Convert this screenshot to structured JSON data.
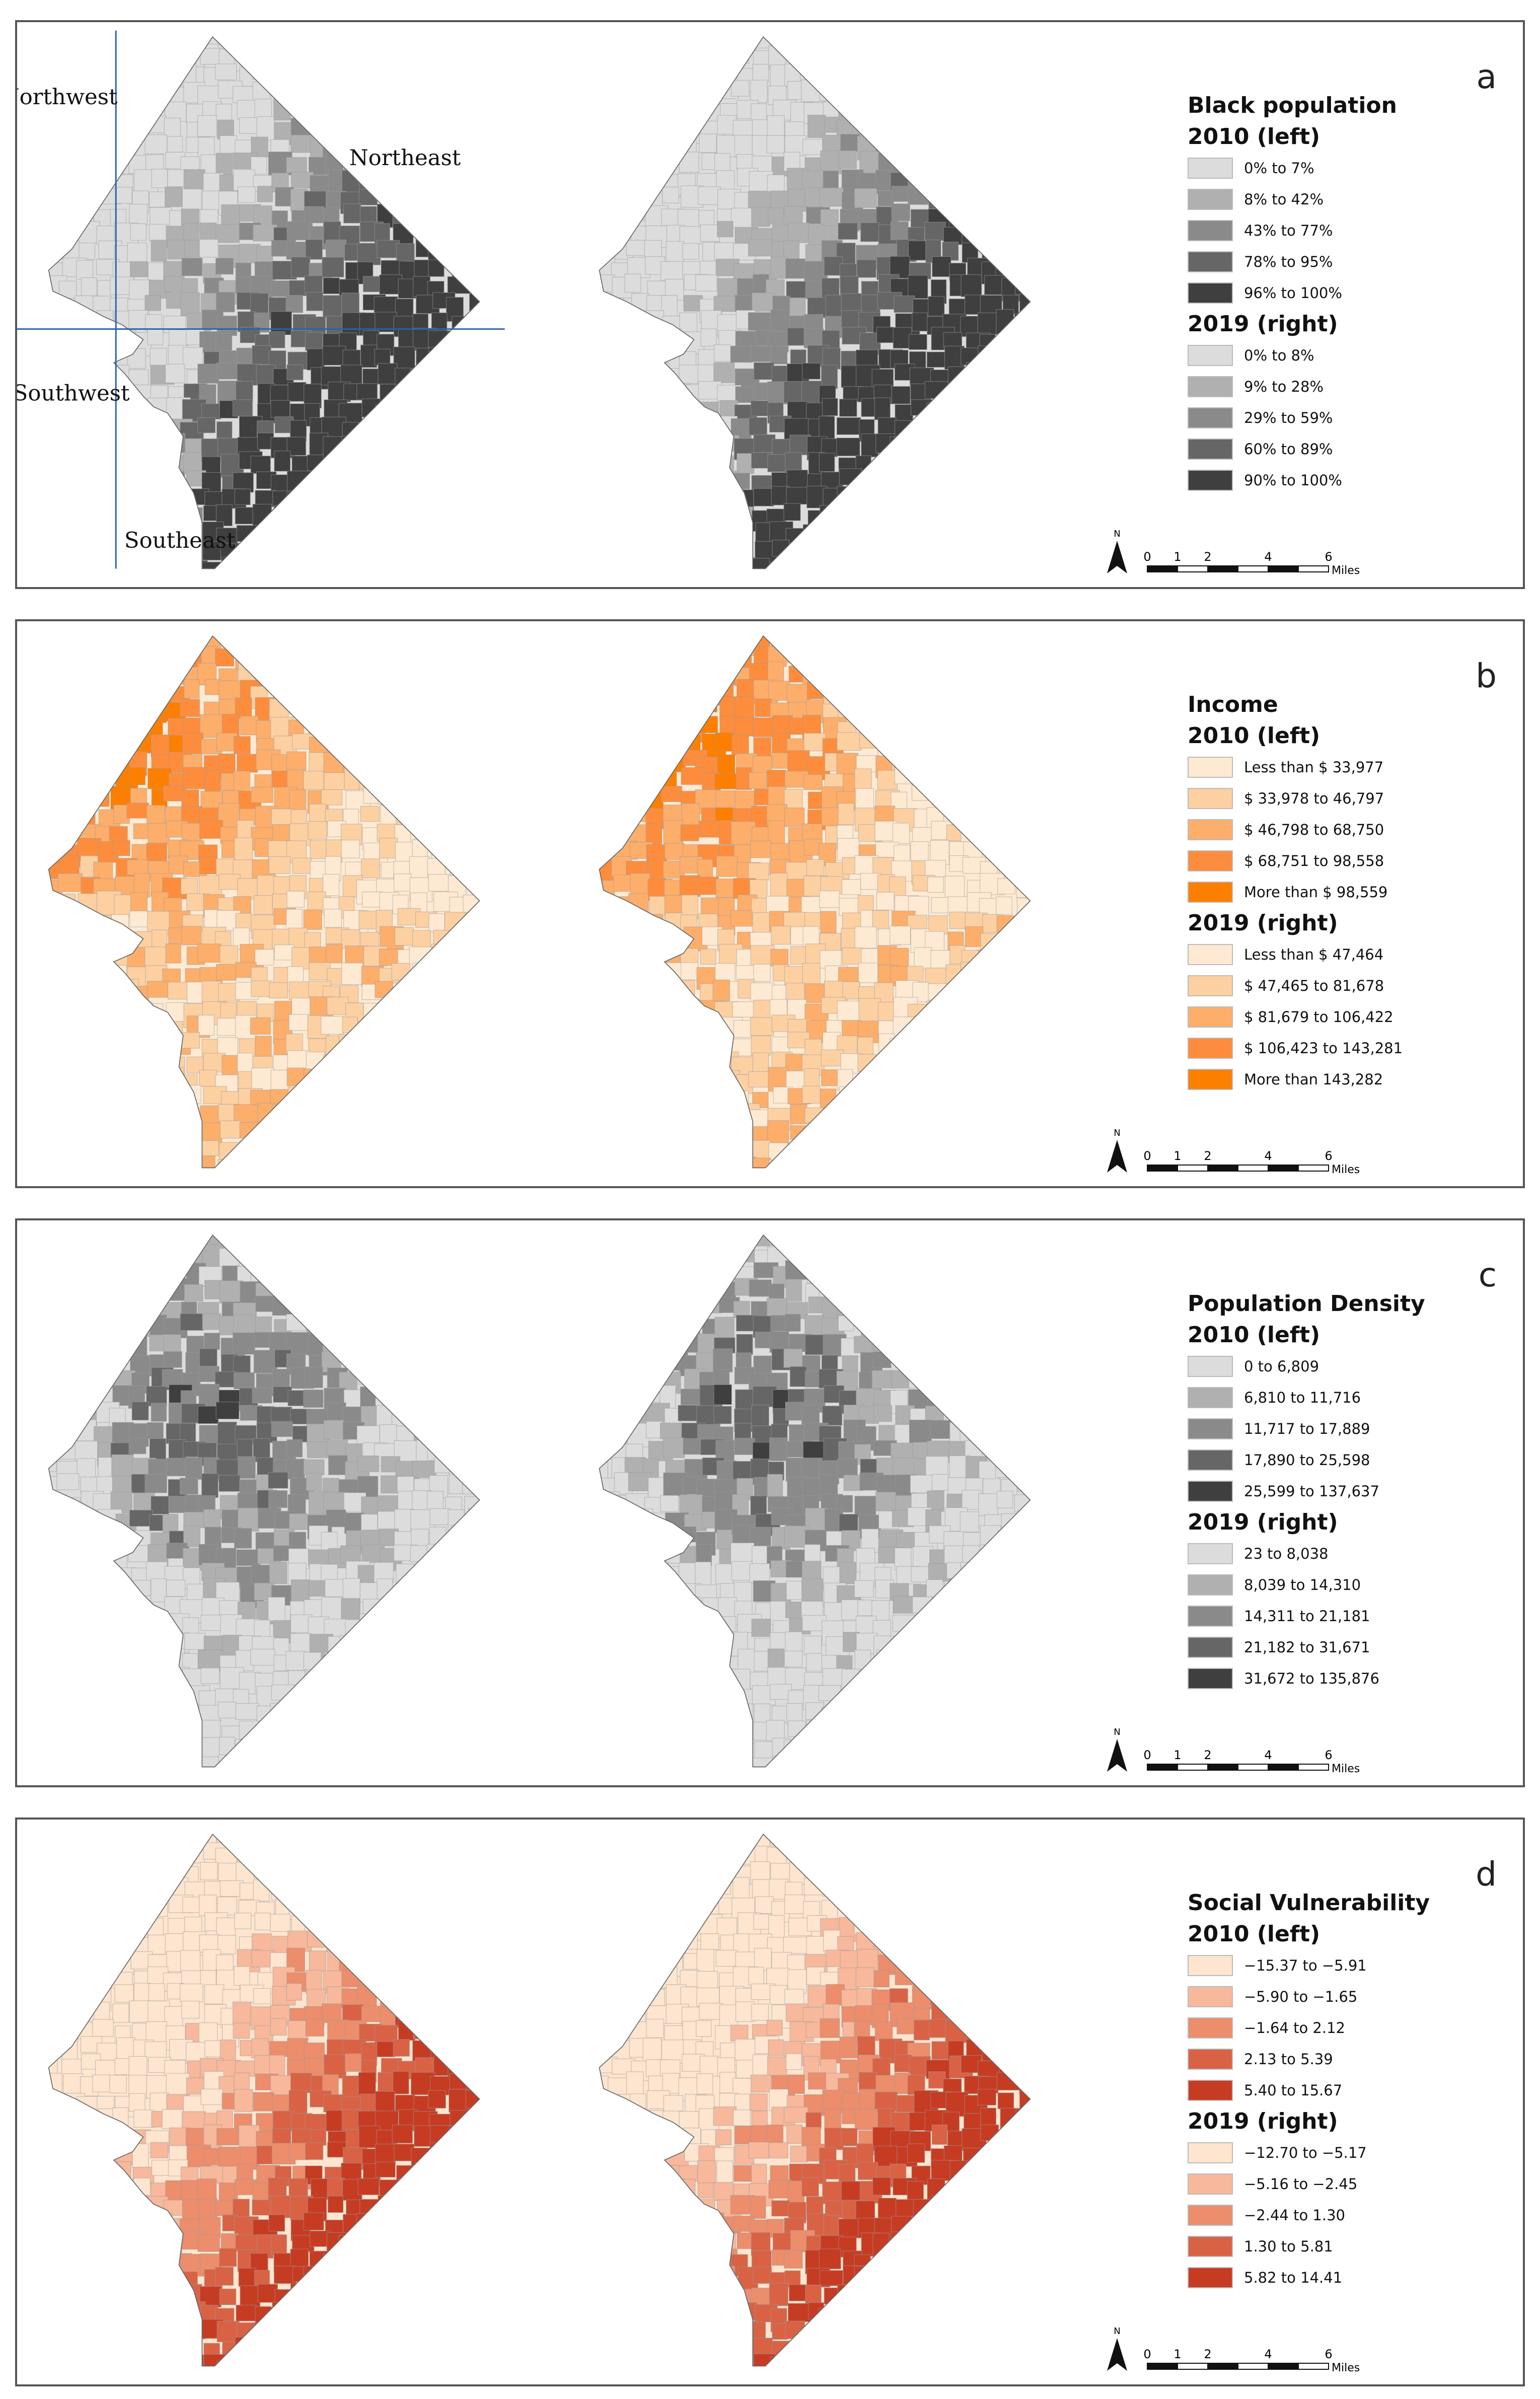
{
  "panels": [
    {
      "letter": "a",
      "legend_title": "Black population",
      "groups": [
        {
          "label": "2010 (left)",
          "classes": [
            "0% to 7%",
            "8% to 42%",
            "43% to 77%",
            "78% to 95%",
            "96% to 100%"
          ],
          "colors": [
            "#dcdcdc",
            "#b0b0b0",
            "#8a8a8a",
            "#666666",
            "#3f3f3f"
          ]
        },
        {
          "label": "2019 (right)",
          "classes": [
            "0% to 8%",
            "9% to 28%",
            "29% to 59%",
            "60% to 89%",
            "90% to 100%"
          ],
          "colors": [
            "#dcdcdc",
            "#b0b0b0",
            "#8a8a8a",
            "#666666",
            "#3f3f3f"
          ]
        }
      ],
      "region_labels": [
        "Northwest",
        "Northeast",
        "Southwest",
        "Southeast"
      ]
    },
    {
      "letter": "b",
      "legend_title": "Income",
      "groups": [
        {
          "label": "2010 (left)",
          "classes": [
            "Less than $ 33,977",
            "$ 33,978 to 46,797",
            "$ 46,798 to 68,750",
            "$ 68,751 to 98,558",
            "More than $ 98,559"
          ],
          "colors": [
            "#feead2",
            "#fdd0a2",
            "#fdae6b",
            "#fd8d3c",
            "#fd7f00"
          ]
        },
        {
          "label": "2019 (right)",
          "classes": [
            "Less than $ 47,464",
            "$ 47,465 to 81,678",
            "$ 81,679 to 106,422",
            "$ 106,423 to 143,281",
            "More than 143,282"
          ],
          "colors": [
            "#feead2",
            "#fdd0a2",
            "#fdae6b",
            "#fd8d3c",
            "#fd7f00"
          ]
        }
      ]
    },
    {
      "letter": "c",
      "legend_title": "Population Density",
      "groups": [
        {
          "label": "2010 (left)",
          "classes": [
            "0 to 6,809",
            "6,810 to 11,716",
            "11,717 to 17,889",
            "17,890 to 25,598",
            "25,599 to 137,637"
          ],
          "colors": [
            "#dcdcdc",
            "#b0b0b0",
            "#8a8a8a",
            "#666666",
            "#3f3f3f"
          ]
        },
        {
          "label": "2019 (right)",
          "classes": [
            "23 to 8,038",
            "8,039 to 14,310",
            "14,311 to 21,181",
            "21,182 to 31,671",
            "31,672 to 135,876"
          ],
          "colors": [
            "#dcdcdc",
            "#b0b0b0",
            "#8a8a8a",
            "#666666",
            "#3f3f3f"
          ]
        }
      ]
    },
    {
      "letter": "d",
      "legend_title": "Social Vulnerability",
      "groups": [
        {
          "label": "2010 (left)",
          "classes": [
            "−15.37 to −5.91",
            "−5.90 to −1.65",
            "−1.64 to 2.12",
            "2.13 to 5.39",
            "5.40 to 15.67"
          ],
          "colors": [
            "#fde5cf",
            "#f7b89b",
            "#ec8d6c",
            "#d96245",
            "#c63c23"
          ]
        },
        {
          "label": "2019 (right)",
          "classes": [
            "−12.70 to −5.17",
            "−5.16 to −2.45",
            "−2.44 to 1.30",
            "1.30 to 5.81",
            "5.82 to 14.41"
          ],
          "colors": [
            "#fde5cf",
            "#f7b89b",
            "#ec8d6c",
            "#d96245",
            "#c63c23"
          ]
        }
      ]
    }
  ],
  "scale_bar": {
    "ticks": [
      "0",
      "1",
      "2",
      "4",
      "6"
    ],
    "unit": "Miles",
    "north": "N"
  }
}
